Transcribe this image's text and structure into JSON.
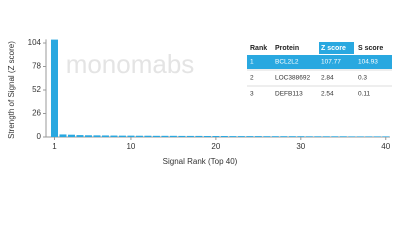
{
  "chart_data": {
    "type": "bar",
    "watermark": "monomabs",
    "xlabel": "Signal Rank (Top 40)",
    "ylabel": "Strength of Signal (Z score)",
    "x": [
      1,
      2,
      3,
      4,
      5,
      6,
      7,
      8,
      9,
      10,
      11,
      12,
      13,
      14,
      15,
      16,
      17,
      18,
      19,
      20,
      21,
      22,
      23,
      24,
      25,
      26,
      27,
      28,
      29,
      30,
      31,
      32,
      33,
      34,
      35,
      36,
      37,
      38,
      39,
      40
    ],
    "values": [
      107.77,
      2.84,
      2.54,
      2.1,
      1.9,
      1.8,
      1.7,
      1.6,
      1.5,
      1.5,
      1.4,
      1.4,
      1.3,
      1.3,
      1.3,
      1.2,
      1.2,
      1.2,
      1.1,
      1.1,
      1.1,
      1.0,
      1.0,
      1.0,
      1.0,
      0.9,
      0.9,
      0.9,
      0.9,
      0.9,
      0.8,
      0.8,
      0.8,
      0.8,
      0.8,
      0.7,
      0.7,
      0.7,
      0.7,
      0.7
    ],
    "color": "#29a8e0",
    "xlim": [
      0,
      40.5
    ],
    "xticks": [
      1,
      10,
      20,
      30,
      40
    ],
    "ylim": [
      0,
      108
    ],
    "yticks": [
      0,
      26,
      52,
      78,
      104
    ],
    "table": {
      "columns": [
        "Rank",
        "Protein",
        "Z score",
        "S score"
      ],
      "highlight_color": "#29a8e0",
      "rows": [
        [
          1,
          "BCL2L2",
          107.77,
          104.93
        ],
        [
          2,
          "LOC388692",
          2.84,
          0.3
        ],
        [
          3,
          "DEFB113",
          2.54,
          0.11
        ]
      ]
    }
  }
}
